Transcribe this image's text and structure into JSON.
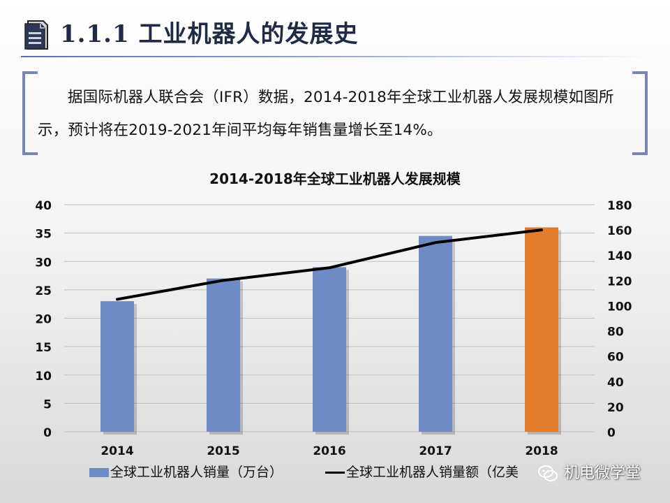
{
  "header": {
    "title": "1.1.1 工业机器人的发展史",
    "icon": "document-icon"
  },
  "intro": {
    "text": "据国际机器人联合会（IFR）数据，2014-2018年全球工业机器人发展规模如图所示，预计将在2019-2021年间平均每年销售量增长至14%。"
  },
  "chart_data": {
    "type": "bar",
    "title": "2014-2018年全球工业机器人发展规模",
    "categories": [
      "2014",
      "2015",
      "2016",
      "2017",
      "2018"
    ],
    "series": [
      {
        "name": "全球工业机器人销量（万台）",
        "type": "bar",
        "axis": "left",
        "values": [
          23,
          27,
          29,
          34.5,
          36
        ],
        "colors": [
          "#6f8bc6",
          "#6f8bc6",
          "#6f8bc6",
          "#6f8bc6",
          "#e07c2c"
        ]
      },
      {
        "name": "全球工业机器人销量额（亿美元）",
        "type": "line",
        "axis": "right",
        "values": [
          105,
          120,
          130,
          150,
          160
        ],
        "color": "#000000"
      }
    ],
    "y_left": {
      "min": 0,
      "max": 40,
      "ticks": [
        "0",
        "5",
        "10",
        "15",
        "20",
        "25",
        "30",
        "35",
        "40"
      ]
    },
    "y_right": {
      "min": 0,
      "max": 180,
      "ticks": [
        "0",
        "20",
        "40",
        "60",
        "80",
        "100",
        "120",
        "140",
        "160",
        "180"
      ]
    },
    "grid": true,
    "legend_position": "bottom"
  },
  "legend": {
    "bar_label": "全球工业机器人销量（万台）",
    "line_label": "全球工业机器人销量额（亿美"
  },
  "watermark": {
    "text": "机电微学堂",
    "icon": "wechat-icon"
  }
}
